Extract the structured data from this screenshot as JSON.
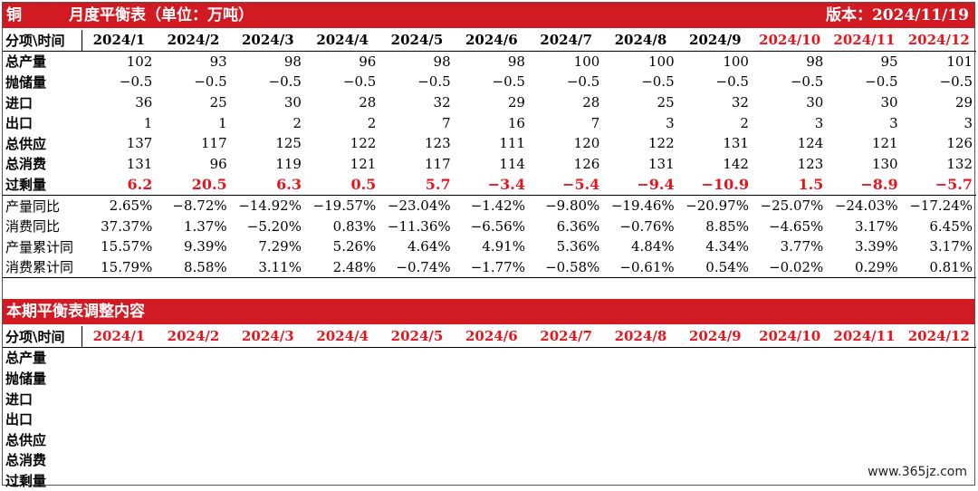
{
  "header": {
    "commodity": "铜",
    "title": "月度平衡表（单位：万吨）",
    "version": "版本：2024/11/19"
  },
  "table1": {
    "corner_label": "分项\\时间",
    "months": [
      "2024/1",
      "2024/2",
      "2024/3",
      "2024/4",
      "2024/5",
      "2024/6",
      "2024/7",
      "2024/8",
      "2024/9",
      "2024/10",
      "2024/11",
      "2024/12"
    ],
    "rows": [
      {
        "label": "总产量",
        "values": [
          "102",
          "93",
          "98",
          "96",
          "98",
          "98",
          "100",
          "100",
          "100",
          "98",
          "95",
          "101"
        ]
      },
      {
        "label": "抛储量",
        "values": [
          "−0.5",
          "−0.5",
          "−0.5",
          "−0.5",
          "−0.5",
          "−0.5",
          "−0.5",
          "−0.5",
          "−0.5",
          "−0.5",
          "−0.5",
          "−0.5"
        ]
      },
      {
        "label": "进口",
        "values": [
          "36",
          "25",
          "30",
          "28",
          "32",
          "29",
          "28",
          "25",
          "32",
          "30",
          "30",
          "29"
        ]
      },
      {
        "label": "出口",
        "values": [
          "1",
          "1",
          "2",
          "2",
          "7",
          "16",
          "7",
          "3",
          "2",
          "3",
          "3",
          "3"
        ]
      },
      {
        "label": "总供应",
        "values": [
          "137",
          "117",
          "125",
          "122",
          "123",
          "111",
          "120",
          "122",
          "131",
          "124",
          "121",
          "126"
        ]
      },
      {
        "label": "总消费",
        "values": [
          "131",
          "96",
          "119",
          "121",
          "117",
          "114",
          "126",
          "131",
          "142",
          "123",
          "130",
          "132"
        ]
      },
      {
        "label": "过剩量",
        "values": [
          "6.2",
          "20.5",
          "6.3",
          "0.5",
          "5.7",
          "−3.4",
          "−5.4",
          "−9.4",
          "−10.9",
          "1.5",
          "−8.9",
          "−5.7"
        ]
      }
    ],
    "ratio_rows": [
      {
        "label": "产量同比",
        "values": [
          "2.65%",
          "−8.72%",
          "−14.92%",
          "−19.57%",
          "−23.04%",
          "−1.42%",
          "−9.80%",
          "−19.46%",
          "−20.97%",
          "−25.07%",
          "−24.03%",
          "−17.24%"
        ]
      },
      {
        "label": "消费同比",
        "values": [
          "37.37%",
          "1.37%",
          "−5.20%",
          "0.83%",
          "−11.36%",
          "−6.56%",
          "6.36%",
          "−0.76%",
          "8.85%",
          "−4.65%",
          "3.17%",
          "6.45%"
        ]
      },
      {
        "label": "产量累计同",
        "values": [
          "15.57%",
          "9.39%",
          "7.29%",
          "5.26%",
          "4.64%",
          "4.91%",
          "5.36%",
          "4.84%",
          "4.34%",
          "3.77%",
          "3.39%",
          "3.17%"
        ]
      },
      {
        "label": "消费累计同",
        "values": [
          "15.79%",
          "8.58%",
          "3.11%",
          "2.48%",
          "−0.74%",
          "−1.77%",
          "−0.58%",
          "−0.61%",
          "0.54%",
          "−0.02%",
          "0.29%",
          "0.81%"
        ]
      }
    ]
  },
  "section2": {
    "title": "本期平衡表调整内容",
    "corner_label": "分项\\时间",
    "row_labels": [
      "总产量",
      "抛储量",
      "进口",
      "出口",
      "总供应",
      "总消费",
      "过剩量"
    ]
  },
  "watermark": "www.365jz.com"
}
